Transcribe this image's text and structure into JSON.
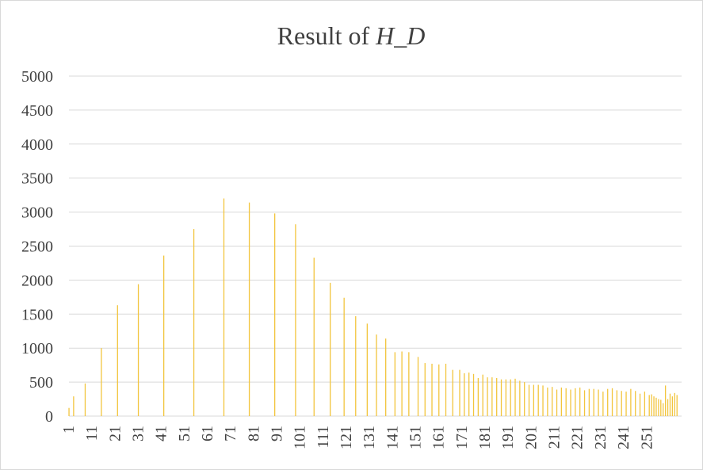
{
  "chart_data": {
    "type": "bar",
    "title_plain": "Result of ",
    "title_italic": "H_D",
    "xlabel": "",
    "ylabel": "",
    "x_range": [
      1,
      256
    ],
    "ylim": [
      0,
      5000
    ],
    "y_ticks": [
      0,
      500,
      1000,
      1500,
      2000,
      2500,
      3000,
      3500,
      4000,
      4500,
      5000
    ],
    "x_tick_labels": [
      1,
      11,
      21,
      31,
      41,
      51,
      61,
      71,
      81,
      91,
      101,
      111,
      121,
      131,
      141,
      151,
      161,
      171,
      181,
      191,
      201,
      211,
      221,
      231,
      241,
      251
    ],
    "grid": true,
    "legend": "none",
    "bar_color": "#F2C53D",
    "grid_color": "#d9d9d9",
    "series": [
      {
        "points": [
          [
            1,
            120
          ],
          [
            3,
            290
          ],
          [
            8,
            480
          ],
          [
            15,
            1000
          ],
          [
            22,
            1630
          ],
          [
            31,
            1940
          ],
          [
            42,
            2360
          ],
          [
            55,
            2750
          ],
          [
            68,
            3200
          ],
          [
            79,
            3140
          ],
          [
            90,
            2980
          ],
          [
            99,
            2820
          ],
          [
            107,
            2330
          ],
          [
            114,
            1960
          ],
          [
            120,
            1740
          ],
          [
            125,
            1470
          ],
          [
            130,
            1360
          ],
          [
            134,
            1200
          ],
          [
            138,
            1140
          ],
          [
            142,
            940
          ],
          [
            145,
            950
          ],
          [
            148,
            940
          ],
          [
            152,
            870
          ],
          [
            155,
            780
          ],
          [
            158,
            770
          ],
          [
            161,
            760
          ],
          [
            164,
            770
          ],
          [
            167,
            680
          ],
          [
            170,
            680
          ],
          [
            172,
            630
          ],
          [
            174,
            640
          ],
          [
            176,
            620
          ],
          [
            178,
            560
          ],
          [
            180,
            610
          ],
          [
            182,
            570
          ],
          [
            184,
            570
          ],
          [
            186,
            560
          ],
          [
            188,
            540
          ],
          [
            190,
            540
          ],
          [
            192,
            540
          ],
          [
            194,
            550
          ],
          [
            196,
            520
          ],
          [
            198,
            500
          ],
          [
            200,
            460
          ],
          [
            202,
            460
          ],
          [
            204,
            460
          ],
          [
            206,
            450
          ],
          [
            208,
            420
          ],
          [
            210,
            430
          ],
          [
            212,
            390
          ],
          [
            214,
            420
          ],
          [
            216,
            410
          ],
          [
            218,
            390
          ],
          [
            220,
            410
          ],
          [
            222,
            420
          ],
          [
            224,
            380
          ],
          [
            226,
            400
          ],
          [
            228,
            400
          ],
          [
            230,
            390
          ],
          [
            232,
            360
          ],
          [
            234,
            400
          ],
          [
            236,
            410
          ],
          [
            238,
            380
          ],
          [
            240,
            370
          ],
          [
            242,
            360
          ],
          [
            244,
            400
          ],
          [
            246,
            370
          ],
          [
            248,
            330
          ],
          [
            250,
            360
          ],
          [
            252,
            310
          ],
          [
            253,
            320
          ],
          [
            254,
            290
          ],
          [
            255,
            270
          ],
          [
            256,
            250
          ],
          [
            257,
            240
          ],
          [
            258,
            190
          ],
          [
            259,
            450
          ],
          [
            260,
            250
          ],
          [
            261,
            330
          ],
          [
            262,
            290
          ],
          [
            263,
            340
          ],
          [
            264,
            310
          ]
        ]
      }
    ]
  }
}
